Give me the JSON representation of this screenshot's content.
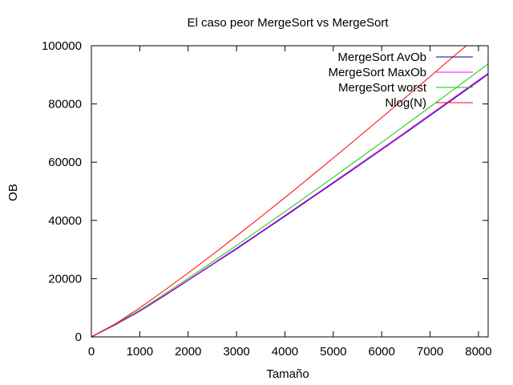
{
  "chart_data": {
    "type": "line",
    "title": "El caso peor MergeSort vs MergeSort",
    "xlabel": "Tamaño",
    "ylabel": "OB",
    "xlim": [
      0,
      8200
    ],
    "ylim": [
      0,
      100000
    ],
    "xticks": [
      0,
      1000,
      2000,
      3000,
      4000,
      5000,
      6000,
      7000,
      8000
    ],
    "yticks": [
      0,
      20000,
      40000,
      60000,
      80000,
      100000
    ],
    "xtick_labels": [
      "0",
      "1000",
      "2000",
      "3000",
      "4000",
      "5000",
      "6000",
      "7000",
      "8000"
    ],
    "ytick_labels": [
      "0",
      "20000",
      "40000",
      "60000",
      "80000",
      "100000"
    ],
    "grid": false,
    "legend_position": "top-right",
    "series": [
      {
        "name": "MergeSort AvOb",
        "color": "#00008b",
        "x": [
          0,
          500,
          1000,
          1500,
          2000,
          2500,
          3000,
          3500,
          4000,
          4500,
          5000,
          5500,
          6000,
          6500,
          7000,
          7500,
          8000,
          8200
        ],
        "y": [
          0,
          4200,
          8800,
          14000,
          19400,
          24800,
          30200,
          35800,
          41400,
          47100,
          52800,
          58500,
          64300,
          70100,
          76000,
          81900,
          87800,
          90200
        ]
      },
      {
        "name": "MergeSort MaxOb",
        "color": "#ff00ff",
        "x": [
          0,
          500,
          1000,
          1500,
          2000,
          2500,
          3000,
          3500,
          4000,
          4500,
          5000,
          5500,
          6000,
          6500,
          7000,
          7500,
          8000,
          8200
        ],
        "y": [
          0,
          4300,
          8900,
          14200,
          19600,
          25000,
          30500,
          36100,
          41700,
          47400,
          53100,
          58900,
          64700,
          70500,
          76400,
          82300,
          88200,
          90600
        ]
      },
      {
        "name": "MergeSort worst",
        "color": "#00cc00",
        "x": [
          0,
          500,
          1000,
          1500,
          2000,
          2500,
          3000,
          3500,
          4000,
          4500,
          5000,
          5500,
          6000,
          6500,
          7000,
          7500,
          8000,
          8200
        ],
        "y": [
          0,
          4500,
          9200,
          14600,
          20100,
          25700,
          31400,
          37200,
          43000,
          48900,
          54800,
          60800,
          66800,
          72900,
          79000,
          85100,
          91300,
          93800
        ]
      },
      {
        "name": "Nlog(N)",
        "color": "#ff0000",
        "x": [
          0,
          500,
          1000,
          1500,
          2000,
          2500,
          3000,
          3500,
          4000,
          4500,
          5000,
          5500,
          6000,
          6500,
          7000,
          7500,
          7750
        ],
        "y": [
          0,
          4500,
          9970,
          15830,
          21930,
          28220,
          34650,
          41210,
          47860,
          54610,
          61440,
          68340,
          75310,
          82330,
          89410,
          96550,
          100000
        ]
      }
    ]
  }
}
